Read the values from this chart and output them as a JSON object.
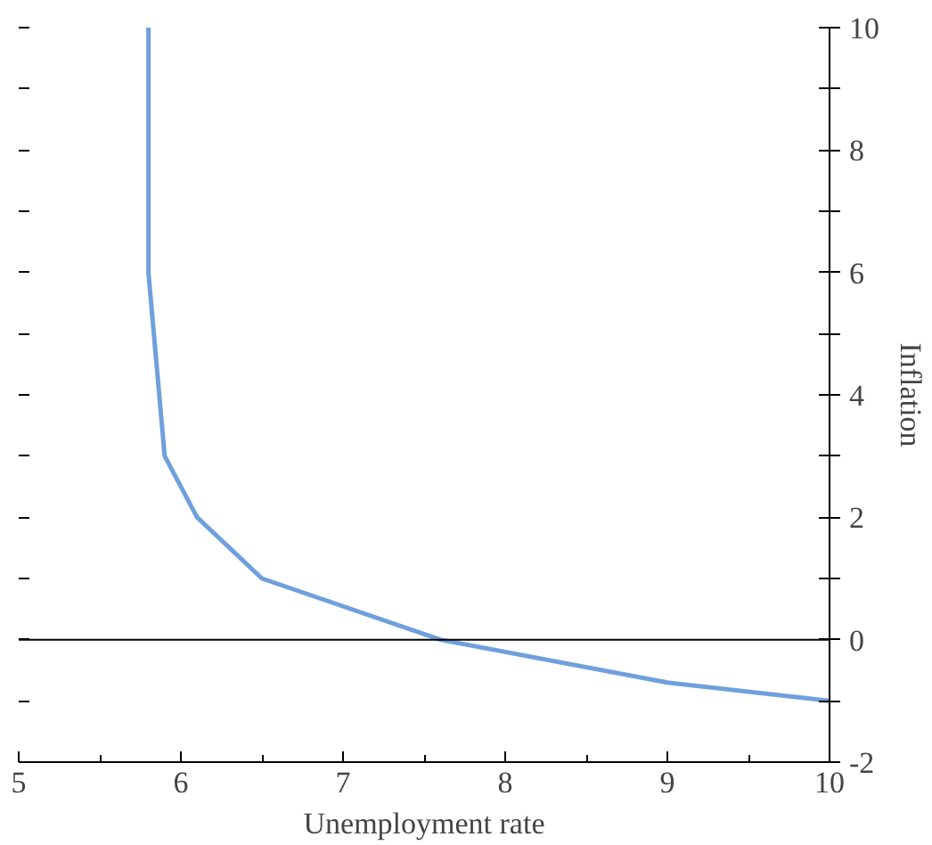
{
  "chart_data": {
    "type": "line",
    "xlabel": "Unemployment rate",
    "ylabel": "Inflation",
    "x": [
      5.8,
      5.8,
      5.9,
      6.1,
      6.5,
      7.6,
      9,
      10
    ],
    "series": [
      {
        "color": "#6fa0dc",
        "values": [
          10,
          6,
          3,
          2,
          1,
          0,
          -0.7,
          -1
        ]
      }
    ],
    "xlim": [
      5,
      10
    ],
    "xticks": [
      5,
      6,
      7,
      8,
      9,
      10
    ],
    "ylim": [
      -2,
      10
    ],
    "yticks": [
      -2,
      {
        "value": -1,
        "label": null
      },
      0,
      {
        "value": 1,
        "label": null
      },
      2,
      {
        "value": 3,
        "label": null
      },
      4,
      {
        "value": 5,
        "label": null
      },
      6,
      {
        "value": 7,
        "label": null
      },
      8,
      {
        "value": 9,
        "label": null
      },
      10
    ],
    "ref_lines": [
      {
        "axis": "y",
        "value": 0,
        "color": "#000000"
      }
    ],
    "grid": false,
    "marker": "none",
    "line_style": "solid"
  }
}
